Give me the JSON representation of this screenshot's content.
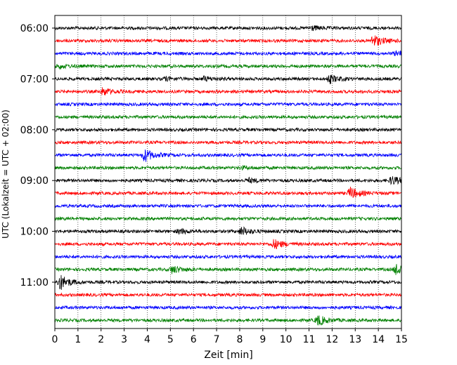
{
  "chart_data": {
    "type": "line",
    "subtype": "helicorder",
    "xlabel": "Zeit  [min]",
    "ylabel": "UTC (Lokalzeit = UTC + 02:00)",
    "xlim": [
      0,
      15
    ],
    "x_ticks": [
      "0",
      "1",
      "2",
      "3",
      "4",
      "5",
      "6",
      "7",
      "8",
      "9",
      "10",
      "11",
      "12",
      "13",
      "14",
      "15"
    ],
    "y_tick_labels": [
      "06:00",
      "07:00",
      "08:00",
      "09:00",
      "10:00",
      "11:00"
    ],
    "grid": "vertical dotted at each minute",
    "row_minutes": 15,
    "row_colors": [
      "#000000",
      "#ff0000",
      "#0000ff",
      "#008000"
    ],
    "rows": [
      {
        "time": "06:00",
        "color": "#000000",
        "events": [
          {
            "t": 11.1,
            "amp": 0.35
          }
        ]
      },
      {
        "time": "06:15",
        "color": "#ff0000",
        "events": [
          {
            "t": 13.8,
            "amp": 0.9
          }
        ]
      },
      {
        "time": "06:30",
        "color": "#0000ff",
        "events": [
          {
            "t": 14.8,
            "amp": 0.35
          }
        ]
      },
      {
        "time": "06:45",
        "color": "#008000",
        "events": [
          {
            "t": 0.2,
            "amp": 0.3
          }
        ]
      },
      {
        "time": "07:00",
        "color": "#000000",
        "events": [
          {
            "t": 4.8,
            "amp": 0.25
          },
          {
            "t": 6.5,
            "amp": 0.3
          },
          {
            "t": 11.9,
            "amp": 0.6
          }
        ]
      },
      {
        "time": "07:15",
        "color": "#ff0000",
        "events": [
          {
            "t": 2.1,
            "amp": 0.55
          }
        ]
      },
      {
        "time": "07:30",
        "color": "#0000ff",
        "events": []
      },
      {
        "time": "07:45",
        "color": "#008000",
        "events": []
      },
      {
        "time": "08:00",
        "color": "#000000",
        "events": []
      },
      {
        "time": "08:15",
        "color": "#ff0000",
        "events": []
      },
      {
        "time": "08:30",
        "color": "#0000ff",
        "events": [
          {
            "t": 3.9,
            "amp": 0.95
          }
        ]
      },
      {
        "time": "08:45",
        "color": "#008000",
        "events": [
          {
            "t": 8.1,
            "amp": 0.2
          }
        ]
      },
      {
        "time": "09:00",
        "color": "#000000",
        "events": [
          {
            "t": 8.4,
            "amp": 0.3
          },
          {
            "t": 14.6,
            "amp": 0.6
          }
        ]
      },
      {
        "time": "09:15",
        "color": "#ff0000",
        "events": [
          {
            "t": 12.8,
            "amp": 0.85
          }
        ]
      },
      {
        "time": "09:30",
        "color": "#0000ff",
        "events": []
      },
      {
        "time": "09:45",
        "color": "#008000",
        "events": []
      },
      {
        "time": "10:00",
        "color": "#000000",
        "events": [
          {
            "t": 5.4,
            "amp": 0.35
          },
          {
            "t": 8.1,
            "amp": 0.6
          }
        ]
      },
      {
        "time": "10:15",
        "color": "#ff0000",
        "events": [
          {
            "t": 9.5,
            "amp": 0.7
          }
        ]
      },
      {
        "time": "10:30",
        "color": "#0000ff",
        "events": []
      },
      {
        "time": "10:45",
        "color": "#008000",
        "events": [
          {
            "t": 5.1,
            "amp": 0.55
          },
          {
            "t": 14.8,
            "amp": 0.95
          }
        ]
      },
      {
        "time": "11:00",
        "color": "#000000",
        "events": [
          {
            "t": 0.25,
            "amp": 1.1
          }
        ]
      },
      {
        "time": "11:15",
        "color": "#ff0000",
        "events": []
      },
      {
        "time": "11:30",
        "color": "#0000ff",
        "events": []
      },
      {
        "time": "11:45",
        "color": "#008000",
        "events": [
          {
            "t": 11.4,
            "amp": 0.75
          }
        ]
      }
    ]
  }
}
